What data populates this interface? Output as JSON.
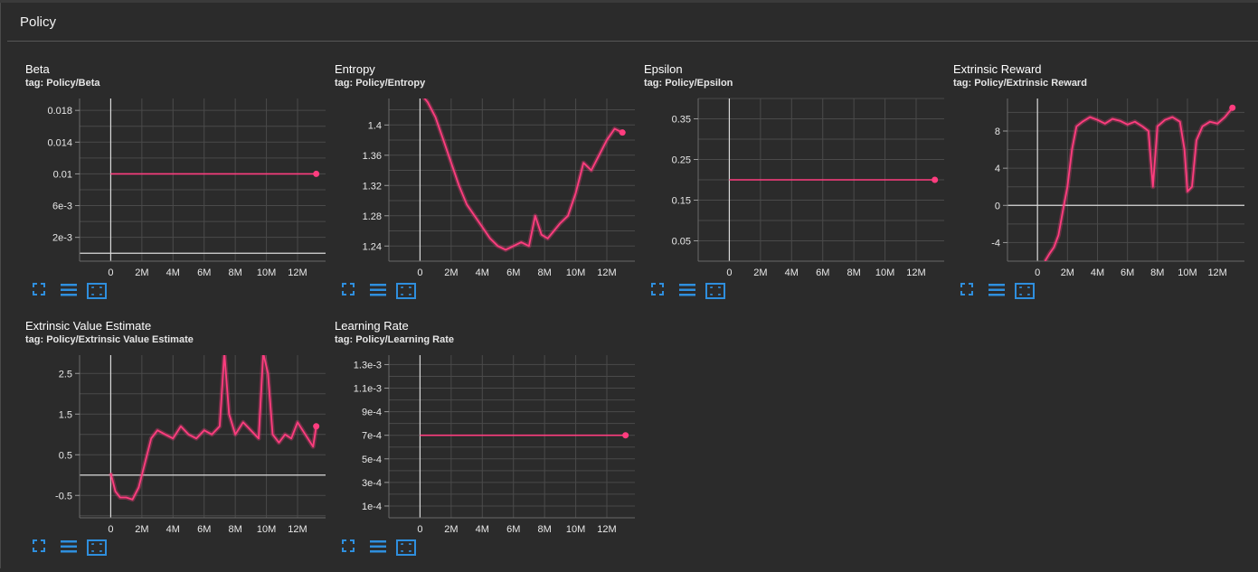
{
  "section": {
    "title": "Policy"
  },
  "colors": {
    "series": "#ff3d7f",
    "grid": "#4a4a4a",
    "axis": "#d9d9d9",
    "icon": "#2f8fde"
  },
  "icons": [
    "fullscreen-icon",
    "list-icon",
    "fit-domain-icon"
  ],
  "charts": [
    {
      "title": "Beta",
      "tag": "tag: Policy/Beta",
      "chart_data": {
        "type": "line",
        "x_ticks": [
          "0",
          "2M",
          "4M",
          "6M",
          "8M",
          "10M",
          "12M"
        ],
        "x_tick_values": [
          0,
          2,
          4,
          6,
          8,
          10,
          12
        ],
        "y_ticks": [
          "0.018",
          "0.014",
          "0.01",
          "6e-3",
          "2e-3"
        ],
        "y_tick_values": [
          0.018,
          0.014,
          0.01,
          0.006,
          0.002
        ],
        "xlim": [
          -2,
          13.8
        ],
        "ylim": [
          -0.001,
          0.0195
        ],
        "series": [
          {
            "x": [
              0,
              13.2
            ],
            "y": [
              0.01,
              0.01
            ]
          }
        ]
      }
    },
    {
      "title": "Entropy",
      "tag": "tag: Policy/Entropy",
      "chart_data": {
        "type": "line",
        "x_ticks": [
          "0",
          "2M",
          "4M",
          "6M",
          "8M",
          "10M",
          "12M"
        ],
        "x_tick_values": [
          0,
          2,
          4,
          6,
          8,
          10,
          12
        ],
        "y_ticks": [
          "1.4",
          "1.36",
          "1.32",
          "1.28",
          "1.24"
        ],
        "y_tick_values": [
          1.4,
          1.36,
          1.32,
          1.28,
          1.24
        ],
        "xlim": [
          -2,
          13.8
        ],
        "ylim": [
          1.22,
          1.435
        ],
        "series": [
          {
            "x": [
              0.1,
              0.5,
              1,
              1.5,
              2,
              2.5,
              3,
              3.5,
              4,
              4.5,
              5,
              5.5,
              6,
              6.5,
              7,
              7.4,
              7.8,
              8.2,
              8.6,
              9,
              9.5,
              10,
              10.5,
              11,
              11.5,
              12,
              12.5,
              13
            ],
            "y": [
              1.44,
              1.43,
              1.41,
              1.38,
              1.35,
              1.32,
              1.295,
              1.28,
              1.265,
              1.25,
              1.24,
              1.235,
              1.24,
              1.245,
              1.24,
              1.28,
              1.255,
              1.25,
              1.26,
              1.27,
              1.28,
              1.31,
              1.35,
              1.34,
              1.36,
              1.38,
              1.395,
              1.39
            ]
          }
        ]
      }
    },
    {
      "title": "Epsilon",
      "tag": "tag: Policy/Epsilon",
      "chart_data": {
        "type": "line",
        "x_ticks": [
          "0",
          "2M",
          "4M",
          "6M",
          "8M",
          "10M",
          "12M"
        ],
        "x_tick_values": [
          0,
          2,
          4,
          6,
          8,
          10,
          12
        ],
        "y_ticks": [
          "0.35",
          "0.25",
          "0.15",
          "0.05"
        ],
        "y_tick_values": [
          0.35,
          0.25,
          0.15,
          0.05
        ],
        "xlim": [
          -2,
          13.8
        ],
        "ylim": [
          0.0,
          0.4
        ],
        "series": [
          {
            "x": [
              0,
              13.2
            ],
            "y": [
              0.2,
              0.2
            ]
          }
        ]
      }
    },
    {
      "title": "Extrinsic Reward",
      "tag": "tag: Policy/Extrinsic Reward",
      "chart_data": {
        "type": "line",
        "x_ticks": [
          "0",
          "2M",
          "4M",
          "6M",
          "8M",
          "10M",
          "12M"
        ],
        "x_tick_values": [
          0,
          2,
          4,
          6,
          8,
          10,
          12
        ],
        "y_ticks": [
          "8",
          "4",
          "0",
          "-4"
        ],
        "y_tick_values": [
          8,
          4,
          0,
          -4
        ],
        "xlim": [
          -2,
          13.8
        ],
        "ylim": [
          -6,
          11.5
        ],
        "series": [
          {
            "x": [
              0.5,
              0.8,
              1.1,
              1.4,
              1.7,
              2.0,
              2.3,
              2.6,
              3.0,
              3.5,
              4,
              4.5,
              5,
              5.5,
              6,
              6.5,
              7,
              7.4,
              7.7,
              8,
              8.5,
              9,
              9.5,
              9.8,
              10,
              10.3,
              10.6,
              11,
              11.5,
              12,
              12.5,
              13
            ],
            "y": [
              -6,
              -5.2,
              -4.5,
              -3.2,
              -0.5,
              2,
              6,
              8.5,
              9,
              9.5,
              9.2,
              8.8,
              9.3,
              9.1,
              8.7,
              9,
              8.5,
              8,
              2,
              8.5,
              9.2,
              9.5,
              9,
              6,
              1.5,
              2,
              7,
              8.5,
              9,
              8.8,
              9.5,
              10.5
            ]
          }
        ]
      }
    },
    {
      "title": "Extrinsic Value Estimate",
      "tag": "tag: Policy/Extrinsic Value Estimate",
      "chart_data": {
        "type": "line",
        "x_ticks": [
          "0",
          "2M",
          "4M",
          "6M",
          "8M",
          "10M",
          "12M"
        ],
        "x_tick_values": [
          0,
          2,
          4,
          6,
          8,
          10,
          12
        ],
        "y_ticks": [
          "2.5",
          "1.5",
          "0.5",
          "-0.5"
        ],
        "y_tick_values": [
          2.5,
          1.5,
          0.5,
          -0.5
        ],
        "xlim": [
          -2,
          13.8
        ],
        "ylim": [
          -1.05,
          2.95
        ],
        "series": [
          {
            "x": [
              0,
              0.3,
              0.6,
              1,
              1.4,
              1.8,
              2.2,
              2.6,
              3,
              3.5,
              4,
              4.5,
              5,
              5.5,
              6,
              6.5,
              7,
              7.3,
              7.6,
              8,
              8.5,
              9,
              9.5,
              9.8,
              10.1,
              10.4,
              10.8,
              11.2,
              11.6,
              12,
              12.5,
              13,
              13.2
            ],
            "y": [
              0.05,
              -0.4,
              -0.55,
              -0.55,
              -0.6,
              -0.3,
              0.3,
              0.9,
              1.1,
              1.0,
              0.9,
              1.2,
              1.0,
              0.9,
              1.1,
              1.0,
              1.2,
              3.0,
              1.5,
              1.0,
              1.3,
              1.1,
              0.9,
              3.0,
              2.5,
              1.0,
              0.8,
              1.0,
              0.9,
              1.3,
              1.0,
              0.7,
              1.2
            ]
          }
        ]
      }
    },
    {
      "title": "Learning Rate",
      "tag": "tag: Policy/Learning Rate",
      "chart_data": {
        "type": "line",
        "x_ticks": [
          "0",
          "2M",
          "4M",
          "6M",
          "8M",
          "10M",
          "12M"
        ],
        "x_tick_values": [
          0,
          2,
          4,
          6,
          8,
          10,
          12
        ],
        "y_ticks": [
          "1.3e-3",
          "1.1e-3",
          "9e-4",
          "7e-4",
          "5e-4",
          "3e-4",
          "1e-4"
        ],
        "y_tick_values": [
          0.0013,
          0.0011,
          0.0009,
          0.0007,
          0.0005,
          0.0003,
          0.0001
        ],
        "xlim": [
          -2,
          13.8
        ],
        "ylim": [
          0.0,
          0.00138
        ],
        "series": [
          {
            "x": [
              0,
              13.2
            ],
            "y": [
              0.0007,
              0.0007
            ]
          }
        ]
      }
    }
  ]
}
